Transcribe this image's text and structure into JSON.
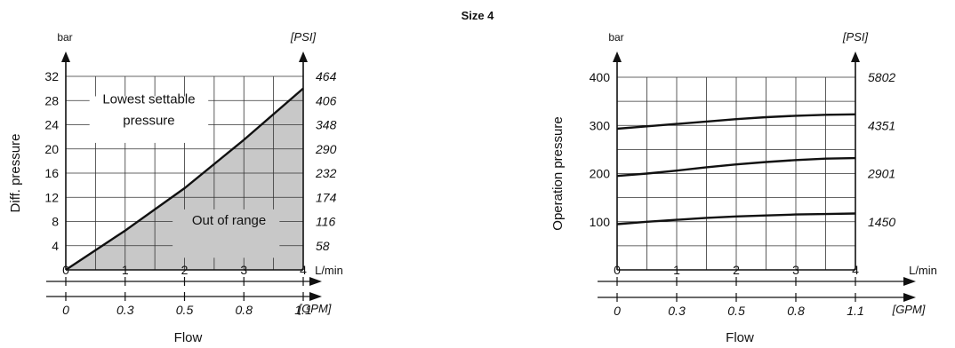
{
  "page_title": "Size 4",
  "colors": {
    "region_fill": "#c8c8c8",
    "line": "#111111",
    "grid": "#333333"
  },
  "chart_data": [
    {
      "type": "line",
      "title": "",
      "xlabel": "Flow",
      "ylabel": "Diff. pressure",
      "x_unit": "L/min",
      "x_unit_secondary": "[GPM]",
      "y_unit": "bar",
      "y_unit_secondary": "[PSI]",
      "xlim": [
        0,
        4
      ],
      "ylim": [
        0,
        32
      ],
      "x_ticks": [
        "0",
        "1",
        "2",
        "3",
        "4"
      ],
      "x_ticks_secondary": [
        "0",
        "0.3",
        "0.5",
        "0.8",
        "1.1"
      ],
      "y_ticks": [
        "4",
        "8",
        "12",
        "16",
        "20",
        "24",
        "28",
        "32"
      ],
      "y_ticks_secondary": [
        "58",
        "116",
        "174",
        "232",
        "290",
        "348",
        "406",
        "464"
      ],
      "grid": true,
      "series": [
        {
          "x": [
            0,
            1,
            2,
            3,
            4
          ],
          "y": [
            0,
            6.5,
            13.5,
            21.5,
            30
          ]
        }
      ],
      "annotations": [
        {
          "text": "Lowest settable",
          "x": 1.4,
          "y": 27.5
        },
        {
          "text": "pressure",
          "x": 1.4,
          "y": 24
        },
        {
          "text": "Out of range",
          "x": 2.75,
          "y": 7.5
        }
      ]
    },
    {
      "type": "line",
      "title": "",
      "xlabel": "Flow",
      "ylabel": "Operation pressure",
      "x_unit": "L/min",
      "x_unit_secondary": "[GPM]",
      "y_unit": "bar",
      "y_unit_secondary": "[PSI]",
      "xlim": [
        0,
        4
      ],
      "ylim": [
        0,
        400
      ],
      "x_ticks": [
        "0",
        "1",
        "2",
        "3",
        "4"
      ],
      "x_ticks_secondary": [
        "0",
        "0.3",
        "0.5",
        "0.8",
        "1.1"
      ],
      "y_ticks": [
        "100",
        "200",
        "300",
        "400"
      ],
      "y_ticks_secondary": [
        "1450",
        "2901",
        "4351",
        "5802"
      ],
      "grid": true,
      "series": [
        {
          "x": [
            0,
            0.5,
            1,
            1.5,
            2,
            2.5,
            3,
            3.5,
            4
          ],
          "y": [
            95,
            100,
            104,
            108,
            111,
            113,
            115,
            116,
            117
          ]
        },
        {
          "x": [
            0,
            0.5,
            1,
            1.5,
            2,
            2.5,
            3,
            3.5,
            4
          ],
          "y": [
            195,
            200,
            206,
            213,
            219,
            224,
            228,
            231,
            232
          ]
        },
        {
          "x": [
            0,
            0.5,
            1,
            1.5,
            2,
            2.5,
            3,
            3.5,
            4
          ],
          "y": [
            293,
            298,
            303,
            308,
            313,
            317,
            320,
            322,
            323
          ]
        }
      ]
    }
  ]
}
